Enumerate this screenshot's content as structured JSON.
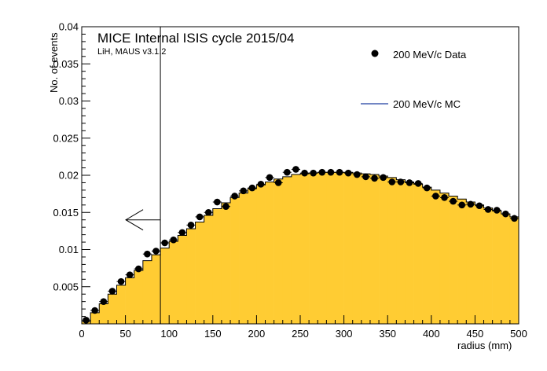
{
  "chart_data": {
    "type": "bar",
    "title": "MICE Internal ISIS cycle 2015/04",
    "subtitle": "LiH, MAUS v3.1.2",
    "xlabel": "radius (mm)",
    "ylabel": "No. of events",
    "xlim": [
      0,
      500
    ],
    "ylim": [
      0,
      0.04
    ],
    "bin_width": 10,
    "x_ticks": [
      "0",
      "50",
      "100",
      "150",
      "200",
      "250",
      "300",
      "350",
      "400",
      "450",
      "500"
    ],
    "y_ticks": [
      "0.005",
      "0.01",
      "0.015",
      "0.02",
      "0.025",
      "0.03",
      "0.035",
      "0.04"
    ],
    "cut_line_x": 90,
    "cut_arrow_y": 0.014,
    "legend_position": "top-right",
    "series": [
      {
        "name": "200 MeV/c Data",
        "style": "points",
        "color": "#000000",
        "values": [
          0.0005,
          0.0018,
          0.003,
          0.0044,
          0.0057,
          0.0066,
          0.0074,
          0.0094,
          0.0098,
          0.0109,
          0.0113,
          0.0123,
          0.0133,
          0.0144,
          0.015,
          0.0164,
          0.0158,
          0.0172,
          0.0179,
          0.0183,
          0.0188,
          0.0197,
          0.019,
          0.0204,
          0.0208,
          0.0203,
          0.0203,
          0.0204,
          0.0204,
          0.0204,
          0.0203,
          0.0201,
          0.0198,
          0.0196,
          0.0197,
          0.0191,
          0.0191,
          0.019,
          0.0189,
          0.0183,
          0.0172,
          0.017,
          0.0165,
          0.016,
          0.0161,
          0.0159,
          0.0154,
          0.0153,
          0.0148,
          0.0142
        ]
      },
      {
        "name": "200 MeV/c MC",
        "style": "filled-step",
        "color": "#ffcc33",
        "line_color": "#000000",
        "legend_line_color": "#1f3fa0",
        "values": [
          0.0003,
          0.0015,
          0.0027,
          0.004,
          0.0052,
          0.0062,
          0.0072,
          0.0085,
          0.0093,
          0.0102,
          0.0111,
          0.0119,
          0.0128,
          0.0137,
          0.0146,
          0.0155,
          0.0163,
          0.017,
          0.0176,
          0.0182,
          0.0187,
          0.0191,
          0.0195,
          0.0198,
          0.0201,
          0.0202,
          0.0203,
          0.0204,
          0.0204,
          0.0204,
          0.0204,
          0.0203,
          0.0202,
          0.0201,
          0.0199,
          0.0197,
          0.0194,
          0.0191,
          0.0188,
          0.0184,
          0.018,
          0.0176,
          0.0172,
          0.0168,
          0.0164,
          0.016,
          0.0156,
          0.0152,
          0.0148,
          0.0144
        ]
      }
    ]
  }
}
